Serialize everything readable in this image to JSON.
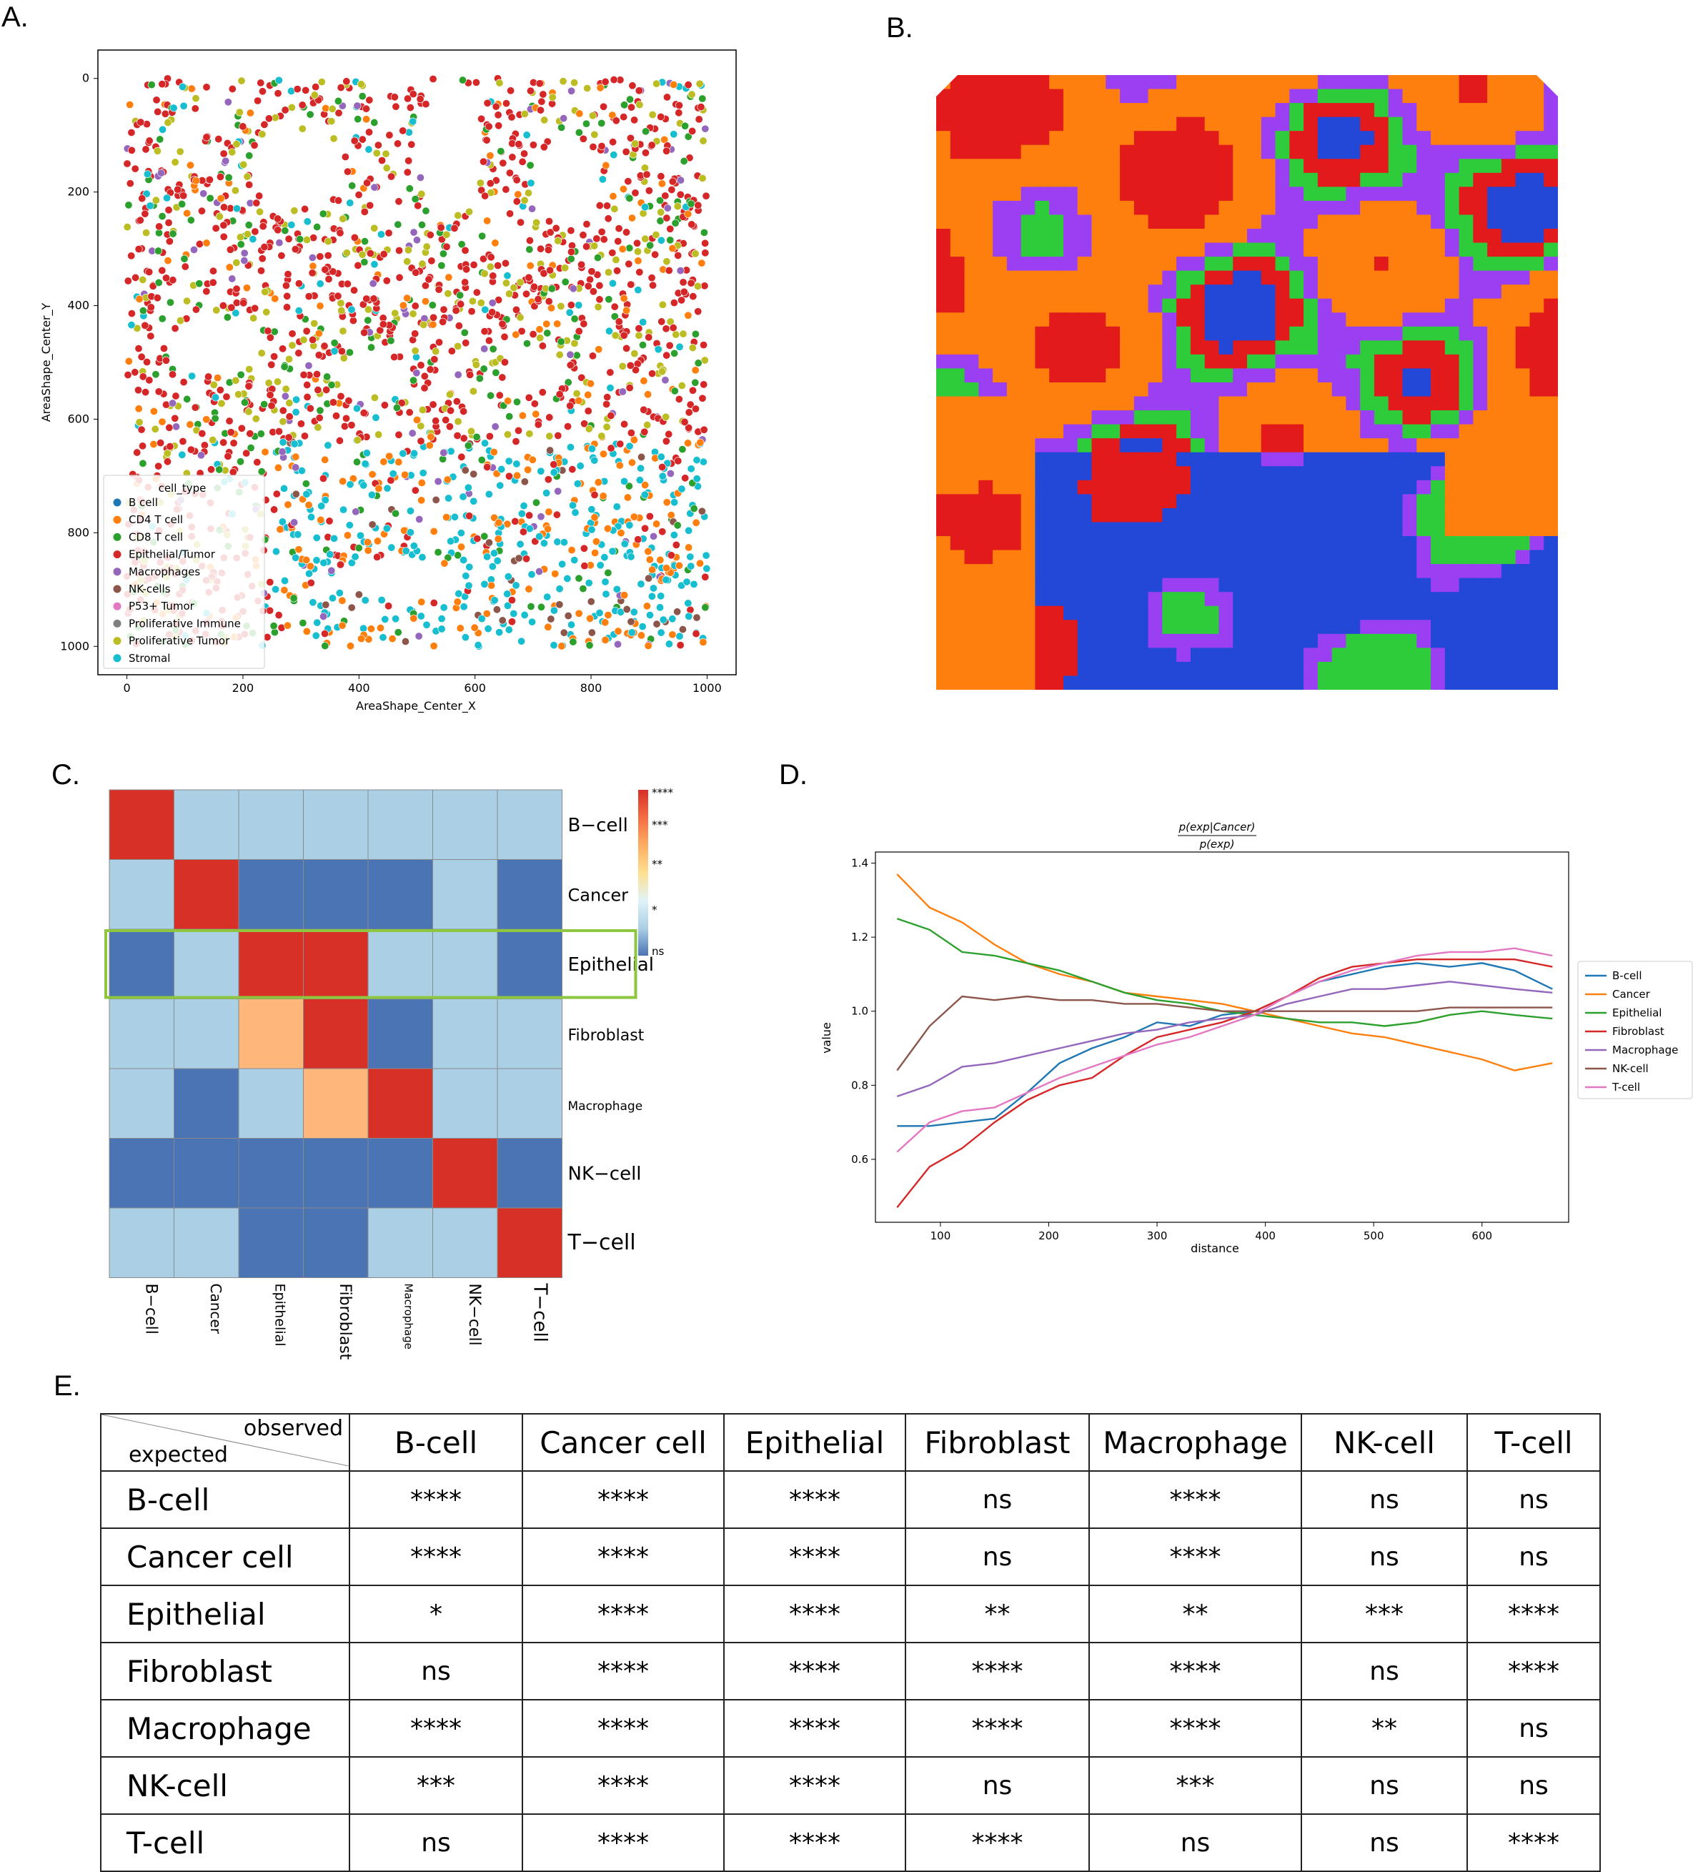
{
  "panels": {
    "a": "A.",
    "b": "B.",
    "c": "C.",
    "d": "D.",
    "e": "E."
  },
  "panel_a": {
    "chart_data": {
      "type": "scatter",
      "xlabel": "AreaShape_Center_X",
      "ylabel": "AreaShape_Center_Y",
      "xlim": [
        -50,
        1050
      ],
      "ylim": [
        1050,
        -50
      ],
      "x_ticks": [
        0,
        200,
        400,
        600,
        800,
        1000
      ],
      "y_ticks": [
        0,
        200,
        400,
        600,
        800,
        1000
      ],
      "legend_title": "cell_type",
      "legend_position": "lower-left",
      "series": [
        {
          "name": "B cell",
          "color": "#1f77b4"
        },
        {
          "name": "CD4 T cell",
          "color": "#ff7f0e"
        },
        {
          "name": "CD8 T cell",
          "color": "#2ca02c"
        },
        {
          "name": "Epithelial/Tumor",
          "color": "#d62728"
        },
        {
          "name": "Macrophages",
          "color": "#9467bd"
        },
        {
          "name": "NK-cells",
          "color": "#8c564b"
        },
        {
          "name": "P53+ Tumor",
          "color": "#e377c2"
        },
        {
          "name": "Proliferative Immune",
          "color": "#7f7f7f"
        },
        {
          "name": "Proliferative Tumor",
          "color": "#bcbd22"
        },
        {
          "name": "Stromal",
          "color": "#17becf"
        }
      ]
    }
  },
  "panel_b": {
    "colors": [
      "#ff7f0e",
      "#e31a1c",
      "#2347d6",
      "#2ecc3a",
      "#9b3ff2"
    ]
  },
  "panel_c": {
    "chart_data": {
      "type": "heatmap",
      "rows": [
        "B−cell",
        "Cancer",
        "Epithelial",
        "Fibroblast",
        "Macrophage",
        "NK−cell",
        "T−cell"
      ],
      "cols": [
        "B−cell",
        "Cancer",
        "Epithelial",
        "Fibroblast",
        "Macrophage",
        "NK−cell",
        "T−cell"
      ],
      "values": [
        [
          4,
          1,
          1,
          1,
          1,
          1,
          1
        ],
        [
          1,
          4,
          0,
          0,
          0,
          1,
          0
        ],
        [
          0,
          1,
          4,
          4,
          1,
          1,
          0
        ],
        [
          1,
          1,
          2,
          4,
          0,
          1,
          1
        ],
        [
          1,
          0,
          1,
          2,
          4,
          1,
          1
        ],
        [
          0,
          0,
          0,
          0,
          0,
          4,
          0
        ],
        [
          1,
          1,
          0,
          0,
          1,
          1,
          4
        ]
      ],
      "colorbar_labels": [
        "****",
        "***",
        "**",
        "*",
        "ns"
      ],
      "level_colors": [
        "#4a74b4",
        "#abd0e6",
        "#fdb77a",
        "#f46d43",
        "#d73027"
      ],
      "highlighted_row": "Epithelial",
      "highlight_color": "#8dc63f"
    }
  },
  "panel_d": {
    "chart_data": {
      "type": "line",
      "title_numerator": "p(exp|Cancer)",
      "title_denominator": "p(exp)",
      "xlabel": "distance",
      "ylabel": "value",
      "xlim": [
        40,
        680
      ],
      "ylim": [
        0.43,
        1.43
      ],
      "x_ticks": [
        100,
        200,
        300,
        400,
        500,
        600
      ],
      "y_ticks": [
        0.6,
        0.8,
        1.0,
        1.2,
        1.4
      ],
      "legend_position": "right",
      "x": [
        60,
        90,
        120,
        150,
        180,
        210,
        240,
        270,
        300,
        330,
        360,
        390,
        420,
        450,
        480,
        510,
        540,
        570,
        600,
        630,
        665
      ],
      "series": [
        {
          "name": "B-cell",
          "color": "#1f77b4",
          "values": [
            0.69,
            0.69,
            0.7,
            0.71,
            0.78,
            0.86,
            0.9,
            0.93,
            0.97,
            0.96,
            0.99,
            1.0,
            1.04,
            1.08,
            1.1,
            1.12,
            1.13,
            1.12,
            1.13,
            1.11,
            1.06
          ]
        },
        {
          "name": "Cancer",
          "color": "#ff7f0e",
          "values": [
            1.37,
            1.28,
            1.24,
            1.18,
            1.13,
            1.1,
            1.08,
            1.05,
            1.04,
            1.03,
            1.02,
            1.0,
            0.98,
            0.96,
            0.94,
            0.93,
            0.91,
            0.89,
            0.87,
            0.84,
            0.86
          ]
        },
        {
          "name": "Epithelial",
          "color": "#2ca02c",
          "values": [
            1.25,
            1.22,
            1.16,
            1.15,
            1.13,
            1.11,
            1.08,
            1.05,
            1.03,
            1.02,
            1.0,
            0.99,
            0.98,
            0.97,
            0.97,
            0.96,
            0.97,
            0.99,
            1.0,
            0.99,
            0.98
          ]
        },
        {
          "name": "Fibroblast",
          "color": "#d62728",
          "values": [
            0.47,
            0.58,
            0.63,
            0.7,
            0.76,
            0.8,
            0.82,
            0.88,
            0.93,
            0.95,
            0.97,
            1.0,
            1.04,
            1.09,
            1.12,
            1.13,
            1.14,
            1.14,
            1.14,
            1.14,
            1.12
          ]
        },
        {
          "name": "Macrophage",
          "color": "#9467bd",
          "values": [
            0.77,
            0.8,
            0.85,
            0.86,
            0.88,
            0.9,
            0.92,
            0.94,
            0.95,
            0.97,
            0.98,
            0.99,
            1.02,
            1.04,
            1.06,
            1.06,
            1.07,
            1.08,
            1.07,
            1.06,
            1.05
          ]
        },
        {
          "name": "NK-cell",
          "color": "#8c564b",
          "values": [
            0.84,
            0.96,
            1.04,
            1.03,
            1.04,
            1.03,
            1.03,
            1.02,
            1.02,
            1.01,
            1.0,
            1.0,
            1.0,
            1.0,
            1.0,
            1.0,
            1.0,
            1.01,
            1.01,
            1.01,
            1.01
          ]
        },
        {
          "name": "T-cell",
          "color": "#e377c2",
          "values": [
            0.62,
            0.7,
            0.73,
            0.74,
            0.78,
            0.82,
            0.85,
            0.88,
            0.91,
            0.93,
            0.96,
            0.99,
            1.04,
            1.08,
            1.11,
            1.13,
            1.15,
            1.16,
            1.16,
            1.17,
            1.15
          ]
        }
      ]
    }
  },
  "panel_e": {
    "corner_observed": "observed",
    "corner_expected": "expected",
    "columns": [
      "B-cell",
      "Cancer cell",
      "Epithelial",
      "Fibroblast",
      "Macrophage",
      "NK-cell",
      "T-cell"
    ],
    "rows": [
      {
        "label": "B-cell",
        "cells": [
          "****",
          "****",
          "****",
          "ns",
          "****",
          "ns",
          "ns"
        ]
      },
      {
        "label": "Cancer cell",
        "cells": [
          "****",
          "****",
          "****",
          "ns",
          "****",
          "ns",
          "ns"
        ]
      },
      {
        "label": "Epithelial",
        "cells": [
          "*",
          "****",
          "****",
          "**",
          "**",
          "***",
          "****"
        ]
      },
      {
        "label": "Fibroblast",
        "cells": [
          "ns",
          "****",
          "****",
          "****",
          "****",
          "ns",
          "****"
        ]
      },
      {
        "label": "Macrophage",
        "cells": [
          "****",
          "****",
          "****",
          "****",
          "****",
          "**",
          "ns"
        ]
      },
      {
        "label": "NK-cell",
        "cells": [
          "***",
          "****",
          "****",
          "ns",
          "***",
          "ns",
          "ns"
        ]
      },
      {
        "label": "T-cell",
        "cells": [
          "ns",
          "****",
          "****",
          "****",
          "ns",
          "ns",
          "****"
        ]
      }
    ]
  }
}
